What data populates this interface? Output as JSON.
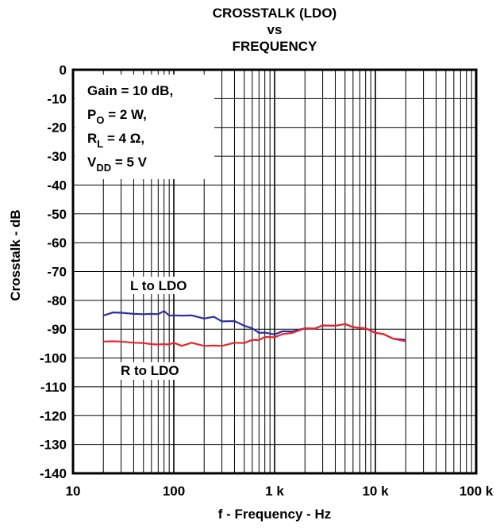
{
  "chart_data": {
    "type": "line",
    "title_lines": [
      "CROSSTALK (LDO)",
      "vs",
      "FREQUENCY"
    ],
    "xlabel": "f - Frequency - Hz",
    "ylabel": "Crosstalk - dB",
    "x_scale": "log",
    "xlim": [
      10,
      100000
    ],
    "ylim": [
      -140,
      0
    ],
    "x_ticks": [
      10,
      100,
      1000,
      10000,
      100000
    ],
    "x_tick_labels": [
      "10",
      "100",
      "1 k",
      "10 k",
      "100 k"
    ],
    "y_ticks": [
      0,
      -10,
      -20,
      -30,
      -40,
      -50,
      -60,
      -70,
      -80,
      -90,
      -100,
      -110,
      -120,
      -130,
      -140
    ],
    "y_tick_labels": [
      "0",
      "-10",
      "-20",
      "-30",
      "-40",
      "-50",
      "-60",
      "-70",
      "-80",
      "-90",
      "-100",
      "-110",
      "-120",
      "-130",
      "-140"
    ],
    "grid": true,
    "conditions": [
      {
        "main": "Gain = 10 dB,",
        "sub": "",
        "tail": ""
      },
      {
        "main": "P",
        "sub": "O",
        "tail": " = 2 W,"
      },
      {
        "main": "R",
        "sub": "L",
        "tail": " = 4 Ω,"
      },
      {
        "main": "V",
        "sub": "DD",
        "tail": " = 5 V"
      }
    ],
    "series": [
      {
        "name": "L to LDO",
        "color": "#2e2e9e",
        "x": [
          20,
          25,
          30,
          40,
          50,
          60,
          70,
          80,
          90,
          100,
          120,
          150,
          200,
          250,
          300,
          400,
          500,
          600,
          700,
          800,
          1000,
          1200,
          1500,
          2000,
          2500,
          3000,
          4000,
          5000,
          6000,
          8000,
          10000,
          12000,
          15000,
          20000
        ],
        "y": [
          -85,
          -84.5,
          -84,
          -85,
          -84.5,
          -85,
          -84.5,
          -84,
          -85,
          -85.5,
          -85,
          -85.5,
          -86,
          -86,
          -87,
          -87.5,
          -88.5,
          -90,
          -91,
          -91.5,
          -91.5,
          -91,
          -90.5,
          -90,
          -89.5,
          -89,
          -88.5,
          -88.5,
          -89,
          -90,
          -91,
          -92,
          -93,
          -94
        ]
      },
      {
        "name": "R to LDO",
        "color": "#e8262e",
        "x": [
          20,
          25,
          30,
          40,
          50,
          60,
          70,
          80,
          90,
          100,
          120,
          150,
          200,
          250,
          300,
          400,
          500,
          600,
          700,
          800,
          1000,
          1200,
          1500,
          2000,
          2500,
          3000,
          4000,
          5000,
          6000,
          8000,
          10000,
          12000,
          15000,
          20000
        ],
        "y": [
          -94,
          -94.5,
          -94,
          -95,
          -94.5,
          -95.5,
          -95,
          -95.5,
          -95,
          -95,
          -95.5,
          -95,
          -95.5,
          -96,
          -95.5,
          -95,
          -94.5,
          -94,
          -93.5,
          -93,
          -92.5,
          -92,
          -91,
          -90,
          -89.5,
          -89,
          -88.5,
          -88.5,
          -89,
          -90,
          -91,
          -92,
          -93,
          -94.5
        ]
      }
    ]
  }
}
